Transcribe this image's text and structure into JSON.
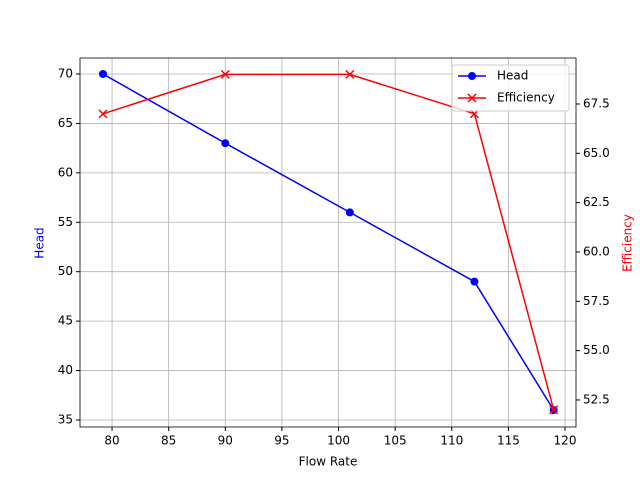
{
  "chart_data": {
    "type": "line",
    "x": [
      79.2,
      90,
      101,
      112,
      119
    ],
    "xlabel": "Flow Rate",
    "ylabel": "Head",
    "y2label": "Efficiency",
    "xlim": [
      77.17,
      120.97
    ],
    "xticks": [
      80,
      85,
      90,
      95,
      100,
      105,
      110,
      115,
      120
    ],
    "ylim": [
      34.29,
      71.62
    ],
    "yticks": [
      35,
      40,
      45,
      50,
      55,
      60,
      65,
      70
    ],
    "y2lim": [
      51.13,
      69.83
    ],
    "y2ticks": [
      52.5,
      {
        "value": 55,
        "label": "55.0"
      },
      57.5,
      {
        "value": 60,
        "label": "60.0"
      },
      62.5,
      {
        "value": 65,
        "label": "65.0"
      },
      67.5
    ],
    "grid": true,
    "legend": "upper right",
    "series": [
      {
        "name": "Head",
        "color": "#0000ff",
        "marker": "o",
        "values": [
          70,
          63,
          56,
          49,
          36
        ]
      },
      {
        "name": "Efficiency",
        "color": "#ff0000",
        "marker": "x",
        "axis": "y2",
        "values": [
          67,
          69,
          69,
          67,
          52
        ]
      }
    ]
  }
}
